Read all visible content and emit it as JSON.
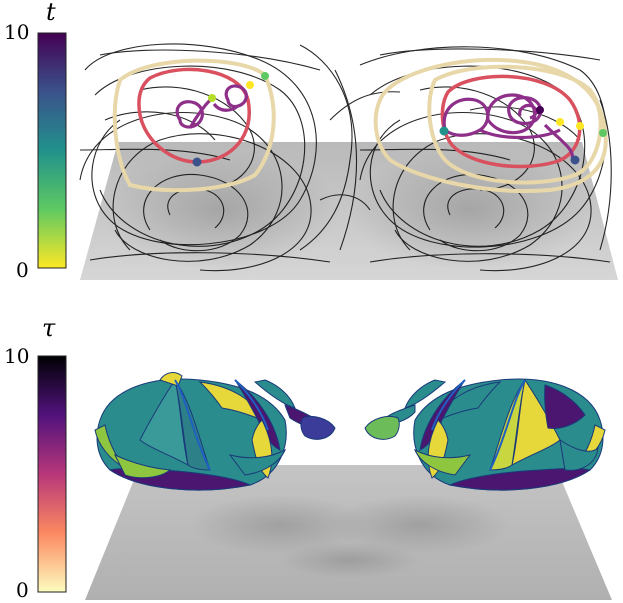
{
  "top_panel": {
    "colorbar": {
      "title": "t",
      "max_label": "10",
      "min_label": "0",
      "colors": [
        "#fde725",
        "#5ec962",
        "#21918c",
        "#3b528b",
        "#440154"
      ]
    },
    "curve_colors": {
      "outer_loop": "#e8d7a8",
      "middle_loop": "#d9505f",
      "inner_loop": "#8e2f8a",
      "streamlines": "#111111",
      "floor": "#a9a9a9"
    }
  },
  "bottom_panel": {
    "colorbar": {
      "title": "τ",
      "max_label": "10",
      "min_label": "0",
      "colors": [
        "#fcfdbf",
        "#fc8961",
        "#b73779",
        "#51127c",
        "#000004"
      ]
    },
    "surface_colors": {
      "yellow": "#e6d73a",
      "green": "#8ec63f",
      "teal": "#2a8c8c",
      "purple": "#4a1670",
      "edge": "#2060c0",
      "floor": "#b5b5b5"
    }
  }
}
